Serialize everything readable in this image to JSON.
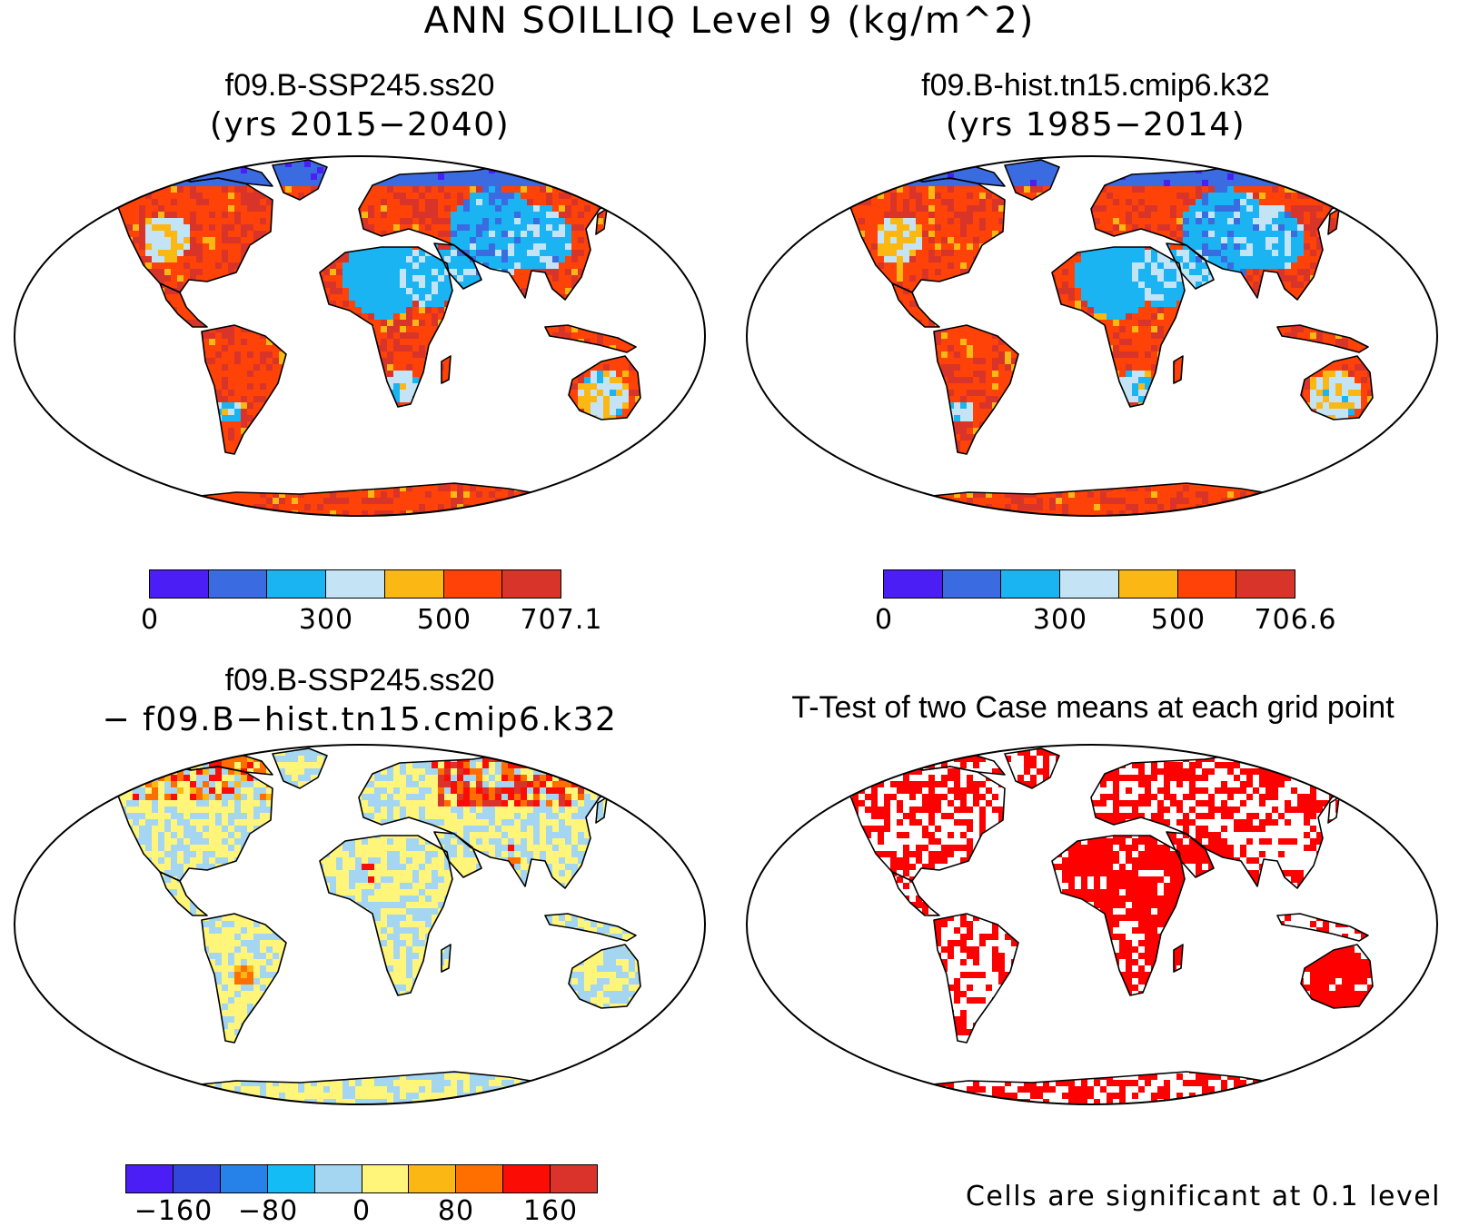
{
  "title": "ANN SOILLIQ Level 9 (kg/m^2)",
  "panels": [
    {
      "title": "f09.B-SSP245.ss20",
      "subtitle": "(yrs 2015−2040)",
      "scheme": "abs"
    },
    {
      "title": "f09.B-hist.tn15.cmip6.k32",
      "subtitle": "(yrs 1985−2014)",
      "scheme": "abs"
    },
    {
      "title": "f09.B-SSP245.ss20",
      "subtitle": "− f09.B−hist.tn15.cmip6.k32",
      "scheme": "diff"
    },
    {
      "title": "T-Test of two Case means at each grid point",
      "subtitle": "",
      "scheme": "ttest"
    }
  ],
  "colorbars": {
    "abs_colors": [
      "#4a1ef5",
      "#3a6be0",
      "#1ab4f2",
      "#c4e4f6",
      "#fbb714",
      "#fe4208",
      "#d9342a"
    ],
    "diff_colors": [
      "#4a1ef5",
      "#3246dc",
      "#2682e8",
      "#14bcf5",
      "#a4d6f2",
      "#fff57a",
      "#fbb814",
      "#ff6f00",
      "#fb0d05",
      "#d9332c"
    ],
    "cb1_labels": [
      "0",
      "300",
      "500",
      "707.1"
    ],
    "cb2_labels": [
      "0",
      "300",
      "500",
      "706.6"
    ],
    "cb3_labels": [
      "−160",
      "−80",
      "0",
      "80",
      "160"
    ]
  },
  "ttest_note": "Cells are significant at 0.1 level",
  "ttest_color": "#ff0000"
}
